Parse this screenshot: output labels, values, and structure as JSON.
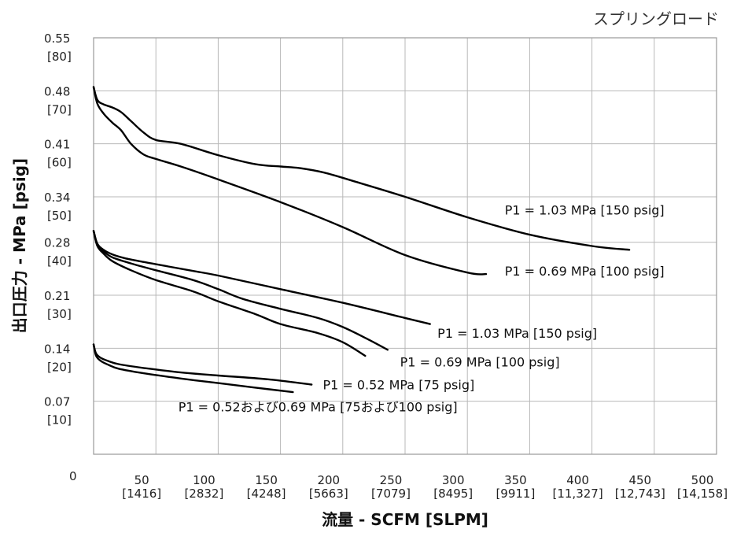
{
  "chart_data": {
    "type": "line",
    "title": "スプリングロード",
    "xlabel": "流量 - SCFM [SLPM]",
    "ylabel": "出口圧力 - MPa [psig]",
    "xlim": [
      0,
      500
    ],
    "ylim": [
      0,
      0.55
    ],
    "grid": true,
    "origin_label": "0",
    "x_ticks": [
      {
        "value": 50,
        "line1": "50",
        "line2": "[1416]"
      },
      {
        "value": 100,
        "line1": "100",
        "line2": "[2832]"
      },
      {
        "value": 150,
        "line1": "150",
        "line2": "[4248]"
      },
      {
        "value": 200,
        "line1": "200",
        "line2": "[5663]"
      },
      {
        "value": 250,
        "line1": "250",
        "line2": "[7079]"
      },
      {
        "value": 300,
        "line1": "300",
        "line2": "[8495]"
      },
      {
        "value": 350,
        "line1": "350",
        "line2": "[9911]"
      },
      {
        "value": 400,
        "line1": "400",
        "line2": "[11,327]"
      },
      {
        "value": 450,
        "line1": "450",
        "line2": "[12,743]"
      },
      {
        "value": 500,
        "line1": "500",
        "line2": "[14,158]"
      }
    ],
    "y_ticks": [
      {
        "value": 0.07,
        "line1": "0.07",
        "line2": "[10]"
      },
      {
        "value": 0.14,
        "line1": "0.14",
        "line2": "[20]"
      },
      {
        "value": 0.21,
        "line1": "0.21",
        "line2": "[30]"
      },
      {
        "value": 0.28,
        "line1": "0.28",
        "line2": "[40]"
      },
      {
        "value": 0.34,
        "line1": "0.34",
        "line2": "[50]"
      },
      {
        "value": 0.41,
        "line1": "0.41",
        "line2": "[60]"
      },
      {
        "value": 0.48,
        "line1": "0.48",
        "line2": "[70]"
      },
      {
        "value": 0.55,
        "line1": "0.55",
        "line2": "[80]"
      }
    ],
    "series": [
      {
        "name": "P1 = 1.03 MPa [150 psig]",
        "label_at": [
          330,
          0.323
        ],
        "x": [
          0,
          3,
          8,
          15,
          22,
          30,
          40,
          50,
          70,
          100,
          130,
          150,
          165,
          185,
          210,
          250,
          300,
          350,
          400,
          430
        ],
        "y": [
          0.485,
          0.468,
          0.462,
          0.458,
          0.452,
          0.44,
          0.425,
          0.415,
          0.41,
          0.395,
          0.383,
          0.38,
          0.378,
          0.372,
          0.36,
          0.34,
          0.313,
          0.29,
          0.275,
          0.27
        ]
      },
      {
        "name": "P1 = 0.69 MPa [100 psig]",
        "label_at": [
          330,
          0.242
        ],
        "x": [
          0,
          3,
          8,
          15,
          22,
          30,
          40,
          50,
          70,
          100,
          150,
          200,
          250,
          300,
          315
        ],
        "y": [
          0.485,
          0.463,
          0.45,
          0.438,
          0.428,
          0.41,
          0.396,
          0.39,
          0.38,
          0.363,
          0.333,
          0.3,
          0.263,
          0.24,
          0.238
        ]
      },
      {
        "name": "P1 = 1.03 MPa [150 psig]",
        "label_at": [
          276,
          0.16
        ],
        "x": [
          0,
          3,
          8,
          15,
          25,
          40,
          60,
          80,
          100,
          150,
          200,
          250,
          270
        ],
        "y": [
          0.295,
          0.278,
          0.27,
          0.264,
          0.259,
          0.254,
          0.248,
          0.242,
          0.236,
          0.218,
          0.2,
          0.18,
          0.172
        ]
      },
      {
        "name": "P1 = 0.69 MPa [100 psig]",
        "label_at": [
          246,
          0.122
        ],
        "x": [
          0,
          3,
          8,
          15,
          30,
          50,
          80,
          100,
          120,
          150,
          180,
          200,
          220,
          236
        ],
        "y": [
          0.295,
          0.277,
          0.268,
          0.26,
          0.252,
          0.243,
          0.23,
          0.218,
          0.205,
          0.192,
          0.18,
          0.168,
          0.152,
          0.138
        ]
      },
      {
        "name": "",
        "label_at": null,
        "x": [
          0,
          3,
          8,
          15,
          30,
          50,
          80,
          100,
          130,
          150,
          180,
          200,
          218
        ],
        "y": [
          0.295,
          0.275,
          0.265,
          0.255,
          0.243,
          0.23,
          0.215,
          0.202,
          0.185,
          0.172,
          0.16,
          0.148,
          0.13
        ]
      },
      {
        "name": "P1 = 0.52 MPa [75 psig]",
        "label_at": [
          184,
          0.092
        ],
        "x": [
          0,
          2,
          6,
          12,
          20,
          40,
          70,
          100,
          140,
          175
        ],
        "y": [
          0.145,
          0.133,
          0.127,
          0.123,
          0.119,
          0.114,
          0.108,
          0.104,
          0.099,
          0.092
        ]
      },
      {
        "name": "P1 = 0.52および0.69 MPa [75および100 psig]",
        "label_at": [
          68,
          0.063
        ],
        "x": [
          0,
          2,
          6,
          12,
          20,
          40,
          70,
          100,
          130,
          160
        ],
        "y": [
          0.145,
          0.13,
          0.123,
          0.118,
          0.113,
          0.107,
          0.1,
          0.094,
          0.088,
          0.082
        ]
      }
    ]
  }
}
